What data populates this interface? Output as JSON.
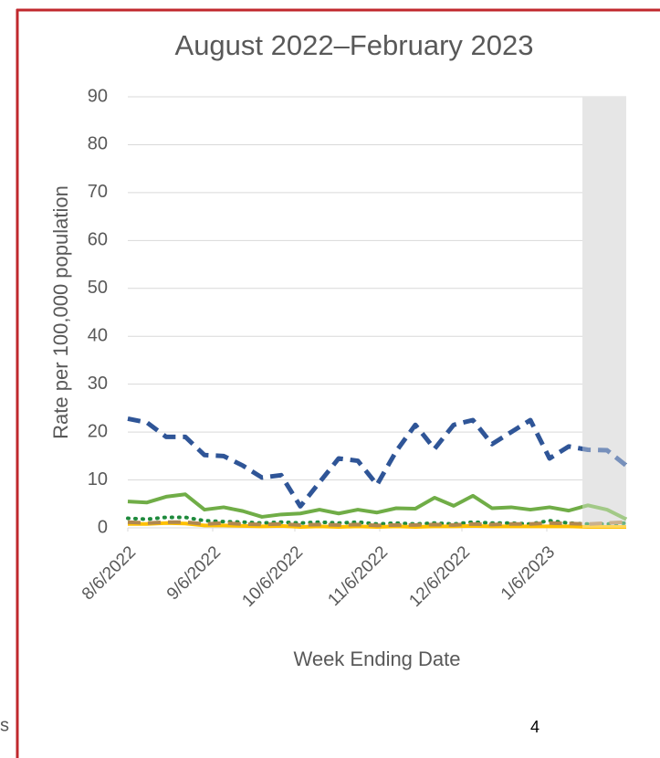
{
  "chart_data": {
    "type": "line",
    "title": "August 2022–February 2023",
    "ylabel": "Rate per 100,000 population",
    "xlabel": "Week Ending Date",
    "x": [
      "2022-08-06",
      "2022-08-13",
      "2022-08-20",
      "2022-08-27",
      "2022-09-03",
      "2022-09-10",
      "2022-09-17",
      "2022-09-24",
      "2022-10-01",
      "2022-10-08",
      "2022-10-15",
      "2022-10-22",
      "2022-10-29",
      "2022-11-05",
      "2022-11-12",
      "2022-11-19",
      "2022-11-26",
      "2022-12-03",
      "2022-12-10",
      "2022-12-17",
      "2022-12-24",
      "2022-12-31",
      "2023-01-07",
      "2023-01-14",
      "2023-01-21",
      "2023-01-28",
      "2023-02-04"
    ],
    "series": [
      {
        "color": "#2f5597",
        "style": "dashed",
        "values": [
          22.8,
          22,
          19,
          19,
          15.2,
          15,
          13,
          10.5,
          11,
          4.5,
          9.5,
          14.5,
          14,
          9,
          16,
          21.5,
          16.5,
          21.5,
          22.5,
          17.5,
          20,
          22.5,
          14.5,
          17,
          16.3,
          16.2,
          13
        ]
      },
      {
        "color": "#70ad47",
        "style": "solid",
        "values": [
          5.5,
          5.3,
          6.5,
          7,
          3.8,
          4.3,
          3.5,
          2.3,
          2.8,
          3,
          3.8,
          3,
          3.8,
          3.2,
          4.1,
          4,
          6.3,
          4.6,
          6.7,
          4.1,
          4.3,
          3.8,
          4.3,
          3.6,
          4.7,
          3.8,
          1.8
        ]
      },
      {
        "color": "#1e8a3c",
        "style": "dotted",
        "values": [
          2,
          1.8,
          2.2,
          2.2,
          1.5,
          1.3,
          1.2,
          1,
          1.2,
          1,
          1.2,
          1,
          1.2,
          0.8,
          1,
          0.8,
          1,
          0.8,
          1.2,
          1,
          1,
          0.8,
          1.5,
          1,
          0.8,
          0.8,
          1
        ]
      },
      {
        "color": "#ffc000",
        "style": "solid",
        "values": [
          0.8,
          0.8,
          1,
          0.9,
          0.5,
          0.5,
          0.4,
          0.3,
          0.4,
          0.2,
          0.3,
          0.2,
          0.3,
          0.2,
          0.3,
          0.2,
          0.3,
          0.3,
          0.4,
          0.3,
          0.3,
          0.3,
          0.3,
          0.3,
          0.2,
          0.2,
          0.2
        ]
      },
      {
        "color": "#b08850",
        "style": "dashed",
        "values": [
          1.2,
          1,
          1.2,
          1.2,
          0.8,
          1,
          0.8,
          0.7,
          0.8,
          0.6,
          0.7,
          0.6,
          0.7,
          0.5,
          0.6,
          0.6,
          0.7,
          0.6,
          0.8,
          0.7,
          0.8,
          0.8,
          1,
          0.9,
          0.8,
          1,
          1.2
        ]
      }
    ],
    "xlim": [
      "2022-08-06",
      "2023-02-04"
    ],
    "xticks": [
      {
        "value": "2022-08-06",
        "label": "8/6/2022"
      },
      {
        "value": "2022-09-06",
        "label": "9/6/2022"
      },
      {
        "value": "2022-10-06",
        "label": "10/6/2022"
      },
      {
        "value": "2022-11-06",
        "label": "11/6/2022"
      },
      {
        "value": "2022-12-06",
        "label": "12/6/2022"
      },
      {
        "value": "2023-01-06",
        "label": "1/6/2023"
      }
    ],
    "ylim": [
      0,
      90
    ],
    "yticks": [
      0,
      10,
      20,
      30,
      40,
      50,
      60,
      70,
      80,
      90
    ],
    "grid": true,
    "shaded_from": "2023-01-19",
    "shade_color": "#d9d9d9"
  },
  "left_fragment": "s",
  "page_number": "4"
}
